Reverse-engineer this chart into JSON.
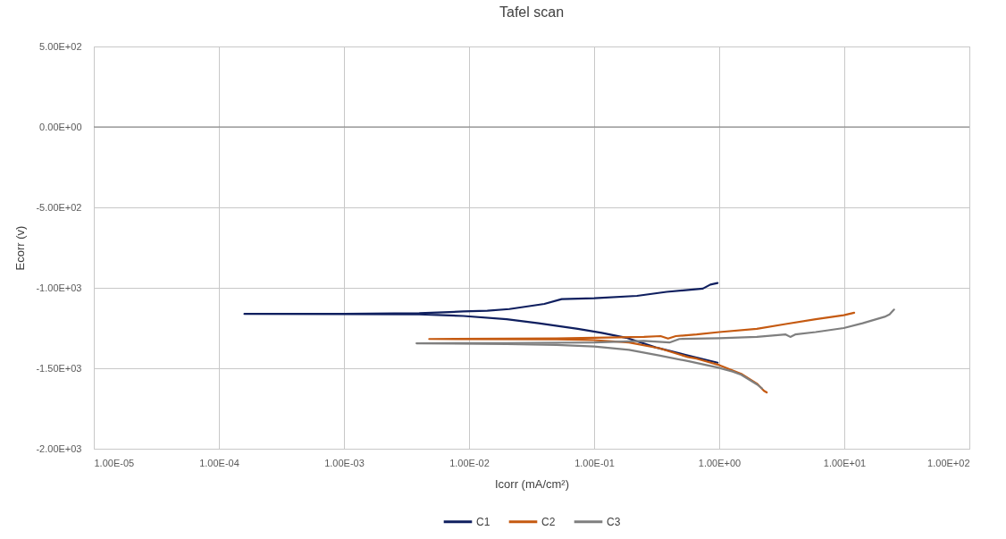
{
  "chart_data": {
    "type": "line",
    "title": "Tafel scan",
    "xlabel": "Icorr (mA/cm²)",
    "ylabel": "Ecorr (v)",
    "log": "x",
    "grid": true,
    "legend": "bottom",
    "line_style": "solid",
    "xlim": [
      1e-05,
      100
    ],
    "xticks": [
      {
        "value": 1e-05,
        "label": "1.00E-05"
      },
      {
        "value": 0.0001,
        "label": "1.00E-04"
      },
      {
        "value": 0.001,
        "label": "1.00E-03"
      },
      {
        "value": 0.01,
        "label": "1.00E-02"
      },
      {
        "value": 0.1,
        "label": "1.00E-01"
      },
      {
        "value": 1,
        "label": "1.00E+00"
      },
      {
        "value": 10,
        "label": "1.00E+01"
      },
      {
        "value": 100,
        "label": "1.00E+02"
      }
    ],
    "ylim": [
      -2000,
      500
    ],
    "yticks": [
      {
        "value": -2000,
        "label": "-2.00E+03"
      },
      {
        "value": -1500,
        "label": "-1.50E+03"
      },
      {
        "value": -1000,
        "label": "-1.00E+03"
      },
      {
        "value": -500,
        "label": "-5.00E+02"
      },
      {
        "value": 0,
        "label": "0.00E+00"
      },
      {
        "value": 500,
        "label": "5.00E+02"
      }
    ],
    "ref_lines": [
      {
        "axis": "y",
        "value": 0,
        "color": "#7f7f7f"
      }
    ],
    "series": [
      {
        "name": "C1",
        "color": "#0f1f5f",
        "x": [
          0.97,
          0.53,
          0.31,
          0.18,
          0.115,
          0.074,
          0.036,
          0.02,
          0.009,
          0.004,
          0.001,
          0.00016,
          0.001,
          0.004,
          0.009,
          0.014,
          0.021,
          0.04,
          0.055,
          0.1,
          0.22,
          0.38,
          0.74,
          0.85,
          0.97
        ],
        "values": [
          -1465,
          -1415,
          -1370,
          -1310,
          -1280,
          -1255,
          -1220,
          -1195,
          -1175,
          -1165,
          -1163,
          -1162,
          -1161,
          -1158,
          -1147,
          -1142,
          -1132,
          -1100,
          -1070,
          -1065,
          -1050,
          -1025,
          -1005,
          -980,
          -970
        ]
      },
      {
        "name": "C2",
        "color": "#c55a11",
        "x": [
          2.4,
          2.28,
          2.0,
          1.5,
          1.0,
          0.66,
          0.56,
          0.33,
          0.19,
          0.1,
          0.05,
          0.0048,
          0.05,
          0.1,
          0.25,
          0.34,
          0.39,
          0.45,
          0.66,
          1.0,
          2.0,
          3.4,
          5.9,
          9.9,
          12
        ],
        "values": [
          -1650,
          -1640,
          -1595,
          -1535,
          -1480,
          -1440,
          -1430,
          -1375,
          -1340,
          -1325,
          -1320,
          -1318,
          -1315,
          -1310,
          -1305,
          -1300,
          -1315,
          -1300,
          -1290,
          -1275,
          -1255,
          -1225,
          -1195,
          -1170,
          -1155
        ]
      },
      {
        "name": "C3",
        "color": "#7f7f7f",
        "x": [
          2.2,
          2.0,
          1.5,
          1.28,
          0.97,
          0.56,
          0.33,
          0.19,
          0.1,
          0.05,
          0.02,
          0.0038,
          0.02,
          0.1,
          0.25,
          0.4,
          0.48,
          1.0,
          2.0,
          3.4,
          3.7,
          4.05,
          5.9,
          9.9,
          14,
          21,
          23,
          25
        ],
        "values": [
          -1625,
          -1600,
          -1540,
          -1520,
          -1495,
          -1455,
          -1420,
          -1385,
          -1365,
          -1355,
          -1350,
          -1345,
          -1343,
          -1340,
          -1330,
          -1340,
          -1318,
          -1313,
          -1305,
          -1290,
          -1305,
          -1290,
          -1275,
          -1250,
          -1220,
          -1180,
          -1165,
          -1135
        ]
      }
    ]
  }
}
